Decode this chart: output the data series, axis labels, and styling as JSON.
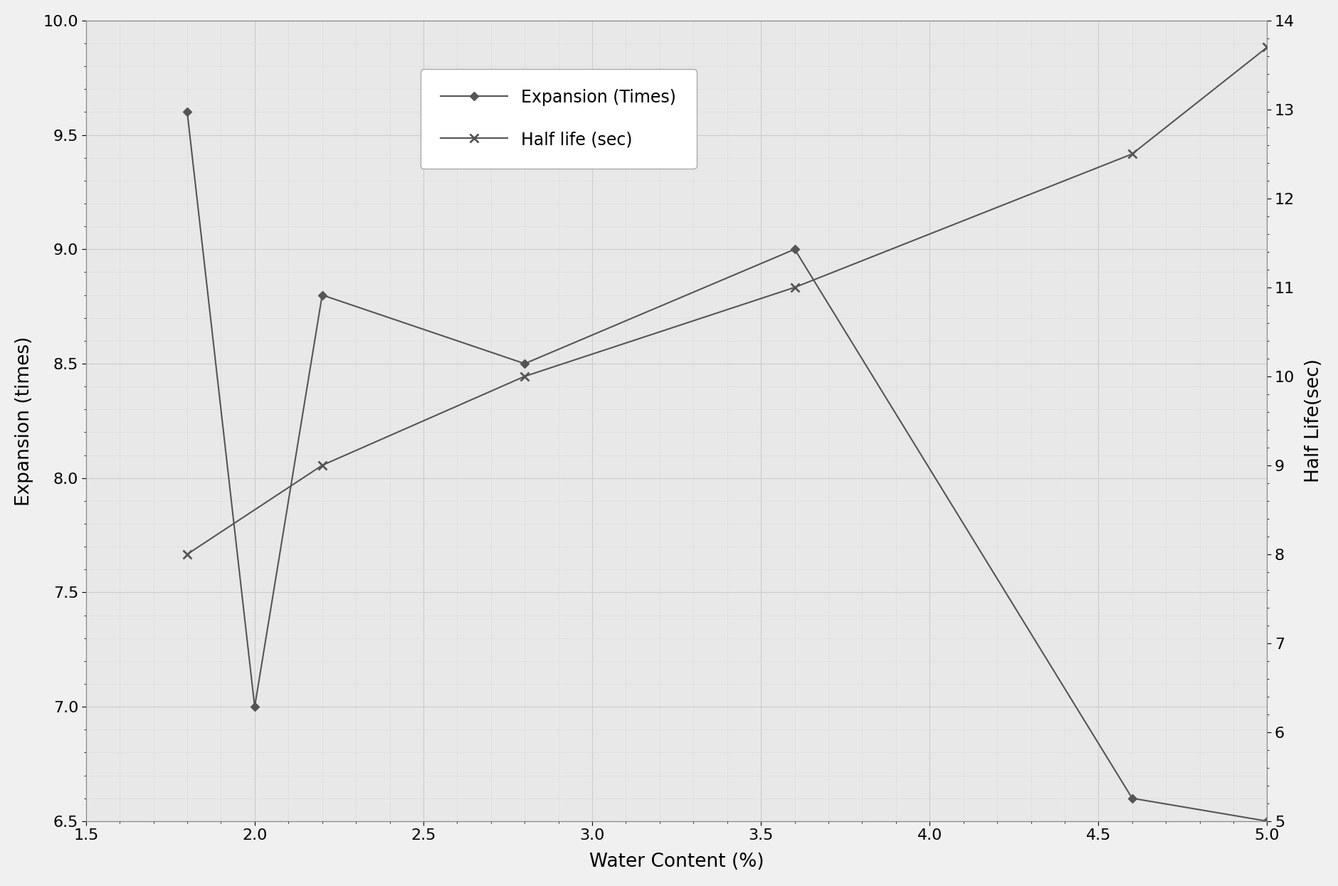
{
  "expansion_x": [
    1.8,
    2.0,
    2.2,
    2.8,
    3.6,
    4.6,
    5.0
  ],
  "expansion_y": [
    9.6,
    7.0,
    8.8,
    8.5,
    9.0,
    6.6,
    6.5
  ],
  "halflife_x": [
    1.8,
    2.2,
    2.8,
    3.6,
    4.6,
    5.0
  ],
  "halflife_y": [
    8.0,
    9.0,
    10.0,
    11.0,
    12.5,
    13.7
  ],
  "xlabel": "Water Content (%)",
  "ylabel_left": "Expansion (times)",
  "ylabel_right": "Half Life(sec)",
  "legend_expansion": "Expansion (Times)",
  "legend_halflife": "Half life (sec)",
  "xlim": [
    1.5,
    5.0
  ],
  "ylim_left": [
    6.5,
    10.0
  ],
  "ylim_right": [
    5.0,
    14.0
  ],
  "xticks": [
    1.5,
    2.0,
    2.5,
    3.0,
    3.5,
    4.0,
    4.5,
    5.0
  ],
  "yticks_left": [
    6.5,
    7.0,
    7.5,
    8.0,
    8.5,
    9.0,
    9.5,
    10.0
  ],
  "yticks_right": [
    5,
    6,
    7,
    8,
    9,
    10,
    11,
    12,
    13,
    14
  ],
  "line_color": "#555555",
  "bg_color": "#e8e8e8",
  "grid_color": "#cccccc",
  "grid_color_minor": "#dddddd"
}
